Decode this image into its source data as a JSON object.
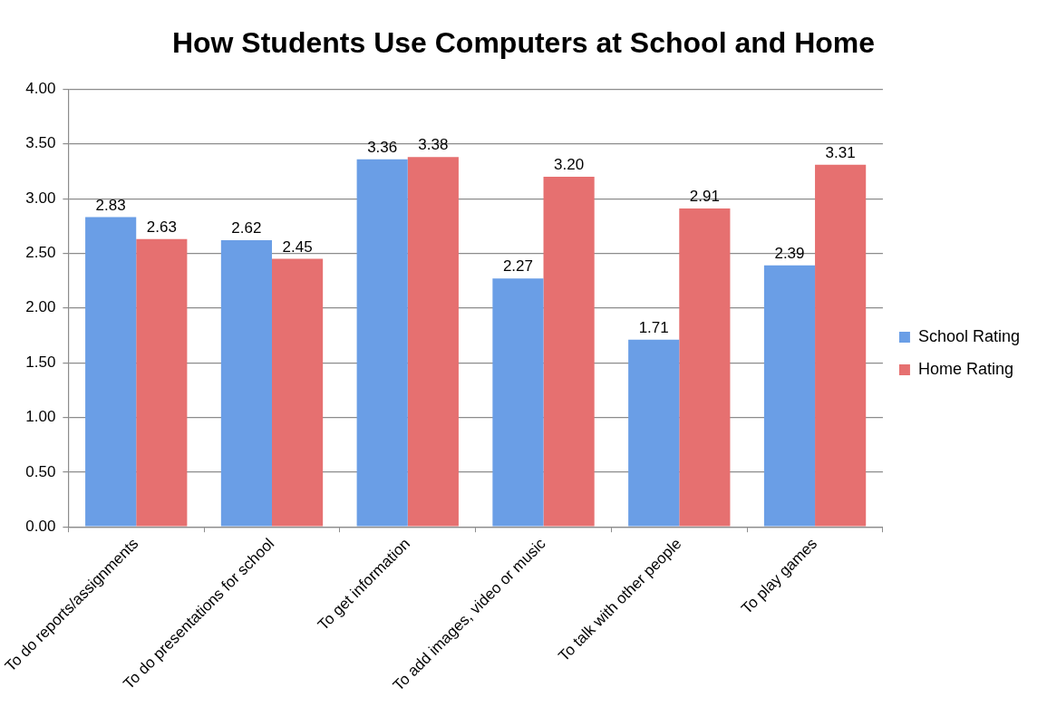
{
  "chart_data": {
    "type": "bar",
    "title": "How Students Use Computers at School and Home",
    "categories": [
      "To do reports/assignments",
      "To do presentations for school",
      "To get information",
      "To add images, video or music",
      "To talk with other people",
      "To play games"
    ],
    "series": [
      {
        "name": "School Rating",
        "color": "#6a9ee6",
        "values": [
          2.83,
          2.62,
          3.36,
          2.27,
          1.71,
          2.39
        ],
        "value_labels": [
          "2.83",
          "2.62",
          "3.36",
          "2.27",
          "1.71",
          "2.39"
        ]
      },
      {
        "name": "Home Rating",
        "color": "#e67070",
        "values": [
          2.63,
          2.45,
          3.38,
          3.2,
          2.91,
          3.31
        ],
        "value_labels": [
          "2.63",
          "2.45",
          "3.38",
          "3.20",
          "2.91",
          "3.31"
        ]
      }
    ],
    "ylim": [
      0,
      4
    ],
    "yticks": [
      {
        "value": 0,
        "label": "0.00"
      },
      {
        "value": 0.5,
        "label": "0.50"
      },
      {
        "value": 1,
        "label": "1.00"
      },
      {
        "value": 1.5,
        "label": "1.50"
      },
      {
        "value": 2,
        "label": "2.00"
      },
      {
        "value": 2.5,
        "label": "2.50"
      },
      {
        "value": 3,
        "label": "3.00"
      },
      {
        "value": 3.5,
        "label": "3.50"
      },
      {
        "value": 4,
        "label": "4.00"
      }
    ],
    "grid": "y",
    "legend": "right"
  }
}
